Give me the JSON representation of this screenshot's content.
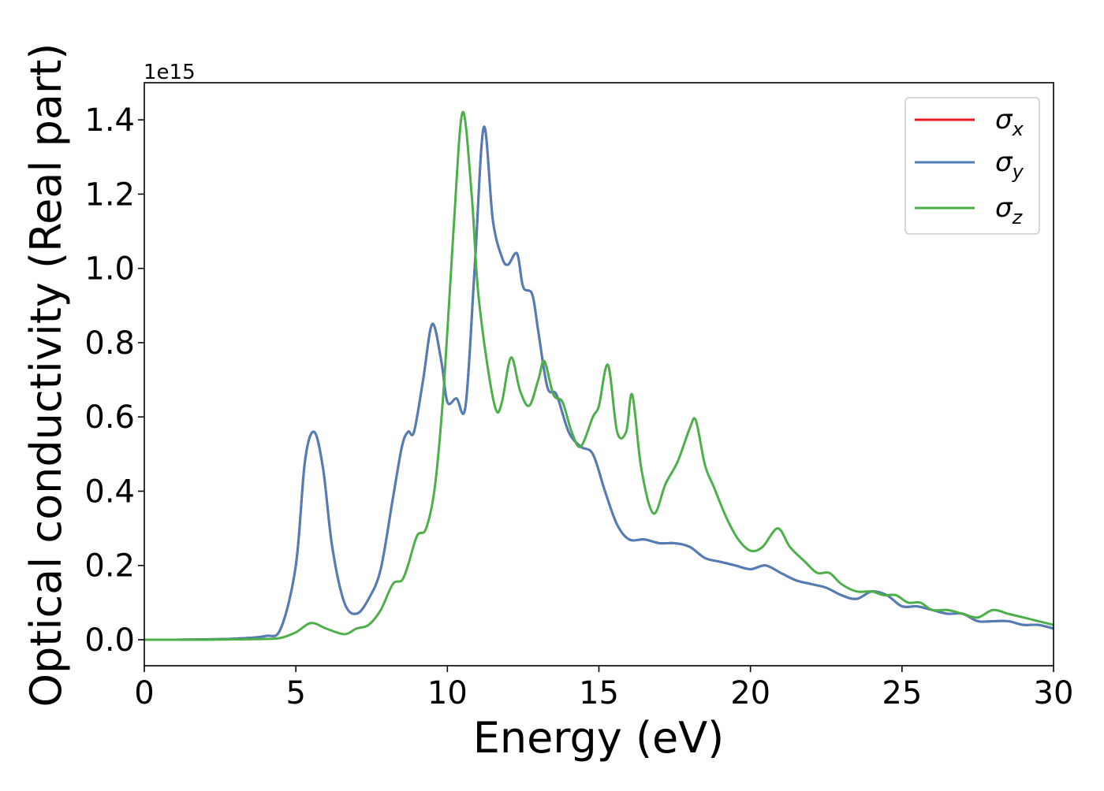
{
  "chart_data": {
    "type": "line",
    "xlabel": "Energy (eV)",
    "ylabel": "Optical conductivity (Real part)",
    "y_offset_label": "1e15",
    "xlim": [
      0,
      30
    ],
    "ylim": [
      -0.07,
      1.5
    ],
    "xticks": [
      0,
      5,
      10,
      15,
      20,
      25,
      30
    ],
    "yticks": [
      0.0,
      0.2,
      0.4,
      0.6,
      0.8,
      1.0,
      1.2,
      1.4
    ],
    "xtick_labels": [
      "0",
      "5",
      "10",
      "15",
      "20",
      "25",
      "30"
    ],
    "ytick_labels": [
      "0.0",
      "0.2",
      "0.4",
      "0.6",
      "0.8",
      "1.0",
      "1.2",
      "1.4"
    ],
    "grid": false,
    "legend_position": "top-right",
    "series": [
      {
        "name": "σx",
        "symbol": "σ",
        "subscript": "x",
        "color": "#e41a1c",
        "x": [
          0,
          1,
          2,
          3,
          4,
          4.5,
          5,
          5.3,
          5.6,
          5.9,
          6.2,
          6.6,
          7.0,
          7.4,
          7.8,
          8.2,
          8.5,
          8.7,
          8.9,
          9.2,
          9.5,
          9.8,
          10.0,
          10.3,
          10.6,
          10.9,
          11.2,
          11.5,
          11.8,
          12.0,
          12.3,
          12.5,
          12.8,
          13.0,
          13.3,
          13.6,
          14.0,
          14.4,
          14.8,
          15.2,
          15.6,
          16.0,
          16.5,
          17.0,
          17.5,
          18.0,
          18.5,
          19.0,
          19.5,
          20.0,
          20.5,
          21.0,
          21.5,
          22.0,
          22.5,
          23.0,
          23.5,
          24.0,
          24.5,
          25.0,
          25.5,
          26.0,
          26.5,
          27.0,
          27.5,
          28.0,
          28.5,
          29.0,
          29.5,
          30.0
        ],
        "values": [
          0.0,
          0.0,
          0.001,
          0.003,
          0.01,
          0.03,
          0.2,
          0.48,
          0.56,
          0.46,
          0.25,
          0.1,
          0.07,
          0.11,
          0.19,
          0.38,
          0.52,
          0.56,
          0.56,
          0.7,
          0.85,
          0.75,
          0.64,
          0.65,
          0.63,
          1.0,
          1.38,
          1.13,
          1.03,
          1.01,
          1.04,
          0.95,
          0.93,
          0.83,
          0.68,
          0.66,
          0.56,
          0.52,
          0.5,
          0.4,
          0.31,
          0.27,
          0.27,
          0.26,
          0.26,
          0.25,
          0.22,
          0.21,
          0.2,
          0.19,
          0.2,
          0.18,
          0.16,
          0.15,
          0.14,
          0.12,
          0.11,
          0.13,
          0.12,
          0.09,
          0.09,
          0.08,
          0.07,
          0.07,
          0.05,
          0.05,
          0.05,
          0.04,
          0.04,
          0.03
        ]
      },
      {
        "name": "σy",
        "symbol": "σ",
        "subscript": "y",
        "color": "#4f7fb8",
        "x": [
          0,
          1,
          2,
          3,
          4,
          4.5,
          5,
          5.3,
          5.6,
          5.9,
          6.2,
          6.6,
          7.0,
          7.4,
          7.8,
          8.2,
          8.5,
          8.7,
          8.9,
          9.2,
          9.5,
          9.8,
          10.0,
          10.3,
          10.6,
          10.9,
          11.2,
          11.5,
          11.8,
          12.0,
          12.3,
          12.5,
          12.8,
          13.0,
          13.3,
          13.6,
          14.0,
          14.4,
          14.8,
          15.2,
          15.6,
          16.0,
          16.5,
          17.0,
          17.5,
          18.0,
          18.5,
          19.0,
          19.5,
          20.0,
          20.5,
          21.0,
          21.5,
          22.0,
          22.5,
          23.0,
          23.5,
          24.0,
          24.5,
          25.0,
          25.5,
          26.0,
          26.5,
          27.0,
          27.5,
          28.0,
          28.5,
          29.0,
          29.5,
          30.0
        ],
        "values": [
          0.0,
          0.0,
          0.001,
          0.003,
          0.01,
          0.03,
          0.2,
          0.48,
          0.56,
          0.46,
          0.25,
          0.1,
          0.07,
          0.11,
          0.19,
          0.38,
          0.52,
          0.56,
          0.56,
          0.7,
          0.85,
          0.75,
          0.64,
          0.65,
          0.63,
          1.0,
          1.38,
          1.13,
          1.03,
          1.01,
          1.04,
          0.95,
          0.93,
          0.83,
          0.68,
          0.66,
          0.56,
          0.52,
          0.5,
          0.4,
          0.31,
          0.27,
          0.27,
          0.26,
          0.26,
          0.25,
          0.22,
          0.21,
          0.2,
          0.19,
          0.2,
          0.18,
          0.16,
          0.15,
          0.14,
          0.12,
          0.11,
          0.13,
          0.12,
          0.09,
          0.09,
          0.08,
          0.07,
          0.07,
          0.05,
          0.05,
          0.05,
          0.04,
          0.04,
          0.03
        ]
      },
      {
        "name": "σz",
        "symbol": "σ",
        "subscript": "z",
        "color": "#4daf4a",
        "x": [
          0,
          1,
          2,
          3,
          4,
          4.5,
          5.0,
          5.5,
          6.0,
          6.6,
          7.0,
          7.4,
          7.8,
          8.2,
          8.5,
          8.7,
          9.0,
          9.3,
          9.6,
          9.9,
          10.2,
          10.5,
          10.8,
          11.0,
          11.3,
          11.6,
          11.8,
          12.1,
          12.4,
          12.7,
          13.0,
          13.2,
          13.5,
          13.8,
          14.1,
          14.4,
          14.8,
          15.0,
          15.3,
          15.6,
          15.9,
          16.1,
          16.4,
          16.8,
          17.2,
          17.6,
          18.0,
          18.2,
          18.5,
          18.8,
          19.2,
          19.6,
          20.0,
          20.4,
          20.9,
          21.3,
          21.8,
          22.2,
          22.6,
          23.0,
          23.5,
          24.0,
          24.4,
          24.8,
          25.2,
          25.6,
          26.0,
          26.5,
          27.0,
          27.5,
          28.0,
          28.5,
          29.0,
          29.5,
          30.0
        ],
        "values": [
          0.0,
          0.0,
          0.0,
          0.001,
          0.002,
          0.005,
          0.02,
          0.045,
          0.03,
          0.015,
          0.03,
          0.04,
          0.08,
          0.15,
          0.16,
          0.2,
          0.28,
          0.3,
          0.42,
          0.7,
          1.1,
          1.42,
          1.2,
          0.95,
          0.75,
          0.62,
          0.64,
          0.76,
          0.67,
          0.63,
          0.7,
          0.75,
          0.66,
          0.64,
          0.56,
          0.52,
          0.6,
          0.63,
          0.74,
          0.56,
          0.56,
          0.66,
          0.46,
          0.34,
          0.42,
          0.48,
          0.57,
          0.59,
          0.47,
          0.41,
          0.33,
          0.27,
          0.24,
          0.25,
          0.3,
          0.25,
          0.21,
          0.18,
          0.18,
          0.15,
          0.13,
          0.13,
          0.12,
          0.12,
          0.1,
          0.1,
          0.08,
          0.08,
          0.07,
          0.06,
          0.08,
          0.07,
          0.06,
          0.05,
          0.04
        ]
      }
    ]
  }
}
